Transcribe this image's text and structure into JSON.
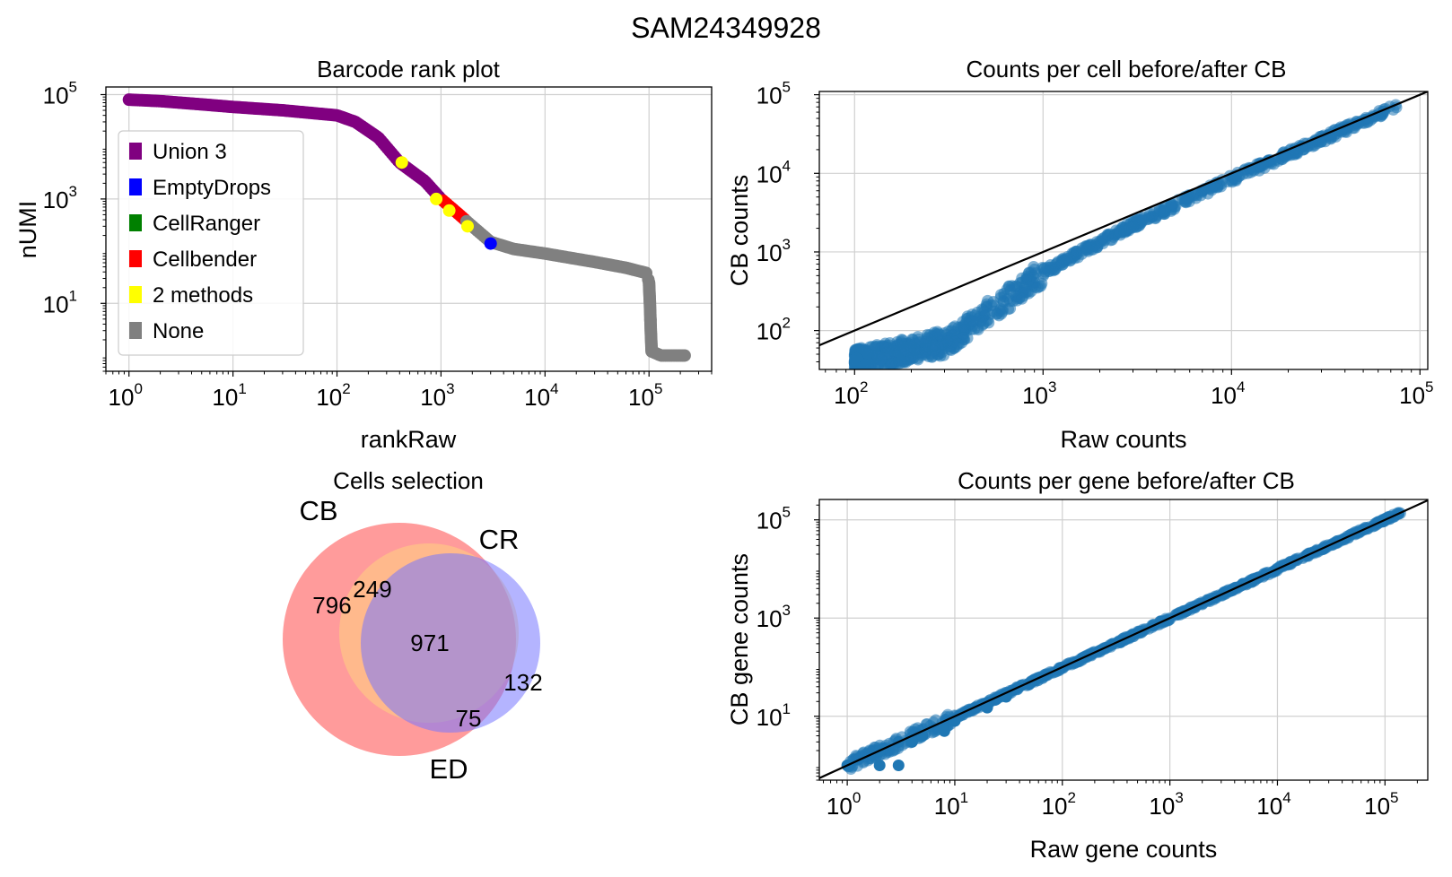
{
  "figure_title": "SAM24349928",
  "colors": {
    "purple": "#800080",
    "blue": "#0000ff",
    "green": "#008000",
    "red": "#ff0000",
    "yellow": "#ffff00",
    "gray": "#808080",
    "steel": "#1f77b4",
    "grid": "#d0d0d0"
  },
  "chart_data": [
    {
      "type": "scatter",
      "title": "Barcode rank plot",
      "xlabel": "rankRaw",
      "ylabel": "nUMI",
      "xscale": "log",
      "yscale": "log",
      "xlim": [
        0.6,
        400000
      ],
      "ylim": [
        0.5,
        140000
      ],
      "xticks": [
        {
          "v": 1,
          "m": "0"
        },
        {
          "v": 10,
          "m": "1"
        },
        {
          "v": 100,
          "m": "2"
        },
        {
          "v": 1000,
          "m": "3"
        },
        {
          "v": 10000,
          "m": "4"
        },
        {
          "v": 100000,
          "m": "5"
        }
      ],
      "yticks": [
        {
          "v": 10,
          "m": "1"
        },
        {
          "v": 1000,
          "m": "3"
        },
        {
          "v": 100000,
          "m": "5"
        }
      ],
      "grid": true,
      "legend_position": "upper-left",
      "legend": [
        {
          "label": "Union 3",
          "color": "#800080"
        },
        {
          "label": "EmptyDrops",
          "color": "#0000ff"
        },
        {
          "label": "CellRanger",
          "color": "#008000"
        },
        {
          "label": "Cellbender",
          "color": "#ff0000"
        },
        {
          "label": "2 methods",
          "color": "#ffff00"
        },
        {
          "label": "None",
          "color": "#808080"
        }
      ],
      "curve": [
        [
          1,
          80000
        ],
        [
          2,
          75000
        ],
        [
          5,
          65000
        ],
        [
          10,
          58000
        ],
        [
          30,
          50000
        ],
        [
          100,
          40000
        ],
        [
          150,
          30000
        ],
        [
          250,
          15000
        ],
        [
          400,
          5000
        ],
        [
          700,
          2200
        ],
        [
          1000,
          1000
        ],
        [
          1500,
          500
        ],
        [
          2000,
          300
        ],
        [
          3000,
          150
        ],
        [
          5000,
          110
        ],
        [
          10000,
          90
        ],
        [
          30000,
          62
        ],
        [
          60000,
          48
        ],
        [
          95000,
          38
        ],
        [
          100000,
          25
        ],
        [
          102000,
          10
        ],
        [
          104000,
          3
        ],
        [
          106000,
          1.2
        ],
        [
          130000,
          1
        ],
        [
          220000,
          1
        ]
      ],
      "segments": [
        {
          "from": 1,
          "to": 1000,
          "color": "#800080"
        },
        {
          "from": 1000,
          "to": 1700,
          "color": "#ff0000"
        },
        {
          "from": 1700,
          "to": 2900,
          "color": "#808080"
        },
        {
          "from": 2900,
          "to": 220000,
          "color": "#808080"
        }
      ],
      "highlights": [
        {
          "x": 420,
          "y": 5000,
          "color": "#ffff00"
        },
        {
          "x": 900,
          "y": 1000,
          "color": "#ffff00"
        },
        {
          "x": 1200,
          "y": 600,
          "color": "#ffff00"
        },
        {
          "x": 1800,
          "y": 300,
          "color": "#ffff00"
        },
        {
          "x": 3000,
          "y": 140,
          "color": "#0000ff"
        }
      ]
    },
    {
      "type": "scatter",
      "title": "Counts per cell before/after CB",
      "xlabel": "Raw counts",
      "ylabel": "CB counts",
      "xscale": "log",
      "yscale": "log",
      "xlim": [
        65,
        110000
      ],
      "ylim": [
        32,
        110000
      ],
      "xticks": [
        {
          "v": 100,
          "m": "2"
        },
        {
          "v": 1000,
          "m": "3"
        },
        {
          "v": 10000,
          "m": "4"
        },
        {
          "v": 100000,
          "m": "5"
        }
      ],
      "yticks": [
        {
          "v": 100,
          "m": "2"
        },
        {
          "v": 1000,
          "m": "3"
        },
        {
          "v": 10000,
          "m": "4"
        },
        {
          "v": 100000,
          "m": "5"
        }
      ],
      "grid": true,
      "point_color": "#1f77b4",
      "trend": [
        [
          100,
          40
        ],
        [
          300,
          70
        ],
        [
          1000,
          550
        ],
        [
          3000,
          2200
        ],
        [
          10000,
          8500
        ],
        [
          30000,
          27000
        ],
        [
          75000,
          70000
        ]
      ],
      "identity_line": true
    },
    {
      "type": "venn",
      "title": "Cells selection",
      "sets": [
        {
          "label": "CB",
          "color": "#ff6666"
        },
        {
          "label": "CR",
          "color": "#ffd280"
        },
        {
          "label": "ED",
          "color": "#7777ff"
        }
      ],
      "regions": {
        "CB_only": "796",
        "CB_CR": "249",
        "CB_CR_ED": "971",
        "ED_only": "132",
        "CB_ED": "75"
      }
    },
    {
      "type": "scatter",
      "title": "Counts per gene before/after CB",
      "xlabel": "Raw gene counts",
      "ylabel": "CB gene counts",
      "xscale": "log",
      "yscale": "log",
      "xlim": [
        0.55,
        250000
      ],
      "ylim": [
        0.5,
        260000
      ],
      "xticks": [
        {
          "v": 1,
          "m": "0"
        },
        {
          "v": 10,
          "m": "1"
        },
        {
          "v": 100,
          "m": "2"
        },
        {
          "v": 1000,
          "m": "3"
        },
        {
          "v": 10000,
          "m": "4"
        },
        {
          "v": 100000,
          "m": "5"
        }
      ],
      "yticks": [
        {
          "v": 10,
          "m": "1"
        },
        {
          "v": 1000,
          "m": "3"
        },
        {
          "v": 100000,
          "m": "5"
        }
      ],
      "grid": true,
      "point_color": "#1f77b4",
      "trend": [
        [
          1,
          1
        ],
        [
          10,
          9.5
        ],
        [
          100,
          97
        ],
        [
          1000,
          990
        ],
        [
          10000,
          10000
        ],
        [
          140000,
          140000
        ]
      ],
      "identity_line": true
    }
  ]
}
